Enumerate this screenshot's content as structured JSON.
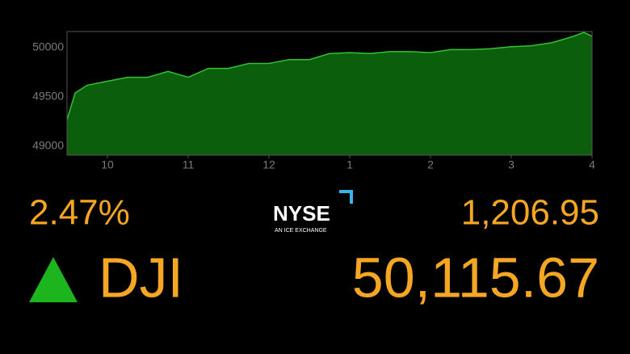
{
  "chart_data": {
    "type": "area",
    "color": "#0b5e0b",
    "line_color": "#33c233",
    "x": [
      9.5,
      9.6,
      9.75,
      10,
      10.25,
      10.5,
      10.75,
      11,
      11.25,
      11.5,
      11.75,
      12,
      12.25,
      12.5,
      12.75,
      13,
      13.25,
      13.5,
      13.75,
      14,
      14.25,
      14.5,
      14.75,
      15,
      15.25,
      15.5,
      15.75,
      15.9,
      16
    ],
    "values": [
      49270,
      49540,
      49620,
      49660,
      49700,
      49700,
      49760,
      49700,
      49790,
      49790,
      49840,
      49840,
      49880,
      49880,
      49940,
      49950,
      49940,
      49960,
      49960,
      49950,
      49980,
      49980,
      49990,
      50010,
      50020,
      50050,
      50110,
      50155,
      50115.67
    ],
    "xlim": [
      9.5,
      16
    ],
    "xticks": [
      10,
      11,
      12,
      {
        "value": 13,
        "label": "1"
      },
      {
        "value": 14,
        "label": "2"
      },
      {
        "value": 15,
        "label": "3"
      },
      {
        "value": 16,
        "label": "4"
      }
    ],
    "ylim": [
      48910,
      50164
    ],
    "yticks": [
      49000,
      49500,
      50000
    ]
  },
  "quote": {
    "percent_change": "2.47%",
    "point_change": "1,206.95",
    "symbol": "DJI",
    "price": "50,115.67"
  },
  "logo": {
    "name": "NYSE",
    "tagline": "AN ICE EXCHANGE"
  }
}
